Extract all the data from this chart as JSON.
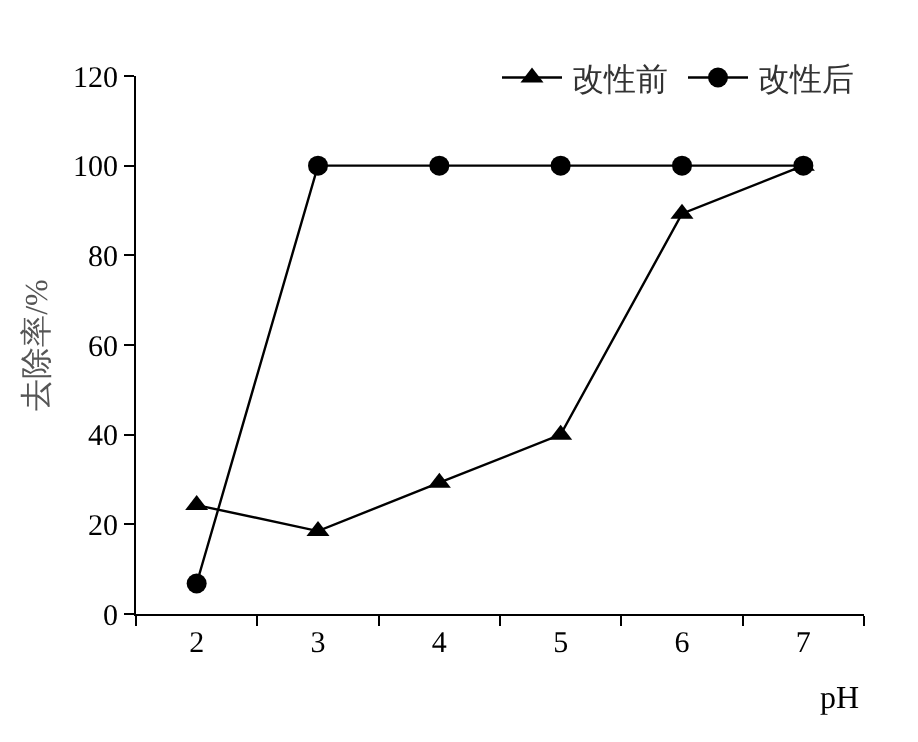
{
  "chart_data": {
    "type": "line",
    "xlabel": "pH",
    "ylabel": "去除率/%",
    "categories": [
      "2",
      "3",
      "4",
      "5",
      "6",
      "7"
    ],
    "series": [
      {
        "name": "改性前",
        "color": "#000000",
        "marker": "triangle",
        "values": [
          24.3,
          18.5,
          29.3,
          40,
          89.3,
          100
        ]
      },
      {
        "name": "改性后",
        "color": "#000000",
        "marker": "circle",
        "values": [
          6.8,
          100,
          100,
          100,
          100,
          100
        ]
      }
    ],
    "ylim": [
      0,
      120
    ],
    "yticks": [
      0,
      20,
      40,
      60,
      80,
      100,
      120
    ],
    "grid": false,
    "legend": "top right",
    "line_style": "solid"
  }
}
